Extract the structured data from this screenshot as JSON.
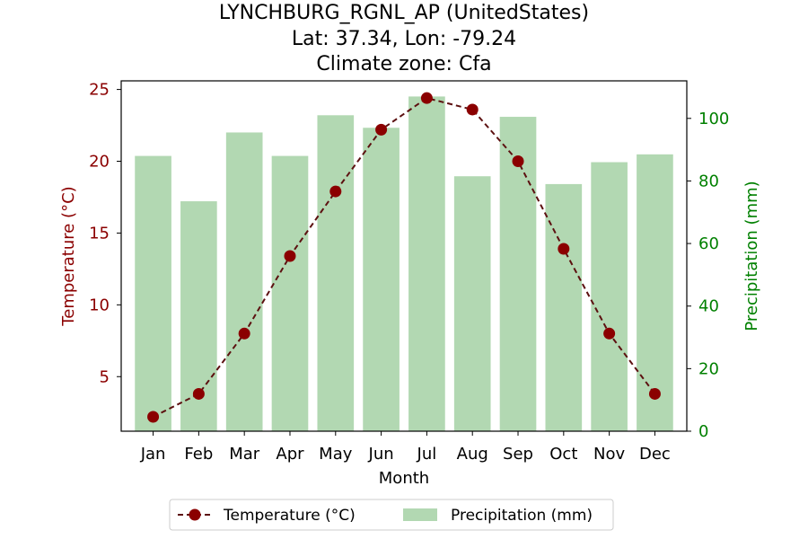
{
  "chart_data": {
    "type": "bar+line",
    "title": [
      "LYNCHBURG_RGNL_AP (UnitedStates)",
      "Lat: 37.34, Lon: -79.24",
      "Climate zone: Cfa"
    ],
    "xlabel": "Month",
    "categories": [
      "Jan",
      "Feb",
      "Mar",
      "Apr",
      "May",
      "Jun",
      "Jul",
      "Aug",
      "Sep",
      "Oct",
      "Nov",
      "Dec"
    ],
    "series": [
      {
        "name": "Temperature (°C)",
        "type": "line",
        "axis": "left",
        "values": [
          2.2,
          3.8,
          8.0,
          13.4,
          17.9,
          22.2,
          24.4,
          23.6,
          20.0,
          13.9,
          8.0,
          3.8
        ]
      },
      {
        "name": "Precipitation (mm)",
        "type": "bar",
        "axis": "right",
        "values": [
          88,
          73.5,
          95.5,
          88,
          101,
          97,
          107,
          81.5,
          100.5,
          79,
          86,
          88.5
        ]
      }
    ],
    "y_left": {
      "label": "Temperature (°C)",
      "range": [
        1.2,
        25.6
      ],
      "ticks": [
        5,
        10,
        15,
        20,
        25
      ]
    },
    "y_right": {
      "label": "Precipitation (mm)",
      "range": [
        0,
        112
      ],
      "ticks": [
        0,
        20,
        40,
        60,
        80,
        100
      ]
    },
    "legend": {
      "placement": "bottom-center"
    },
    "grid": false,
    "colors": {
      "temperature_line": "#5c1010",
      "temperature_marker": "#8b0000",
      "left_axis": "#8b0000",
      "precip_bar": "#b2d8b2",
      "right_axis": "#008000"
    }
  }
}
